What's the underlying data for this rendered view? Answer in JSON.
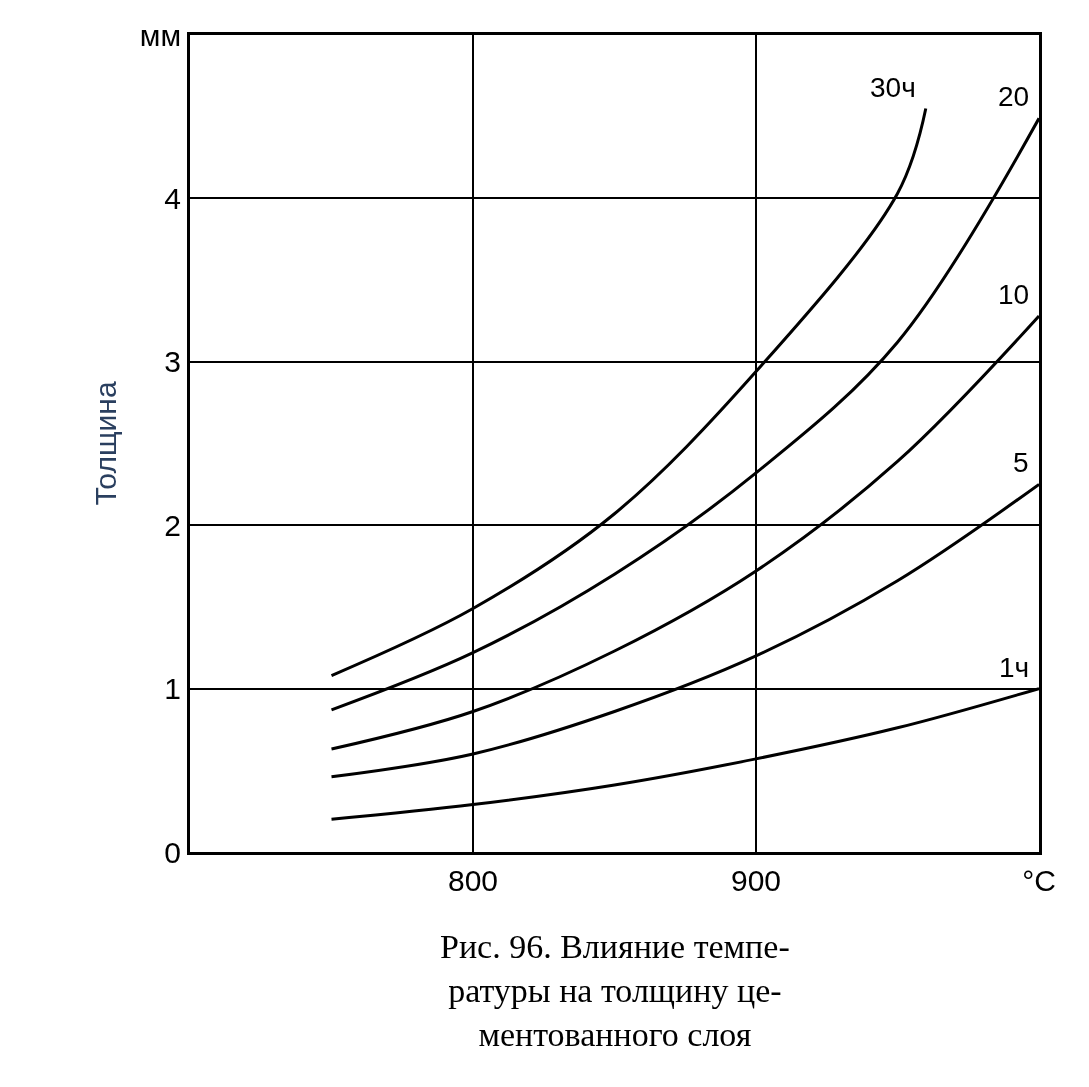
{
  "chart_data": {
    "type": "line",
    "xlabel": null,
    "ylabel": "Толщина",
    "xlim": [
      700,
      1000
    ],
    "ylim": [
      0,
      5
    ],
    "xticks": [
      800,
      900,
      {
        "value": 1000,
        "label": "°C"
      }
    ],
    "yticks": [
      0,
      1,
      2,
      3,
      4,
      {
        "value": 5,
        "label": "мм"
      }
    ],
    "grid": true,
    "legend": false,
    "marker": "none",
    "line_style": "solid",
    "series": [
      {
        "name": "30ч",
        "color": "#000000",
        "x": [
          750,
          800,
          850,
          900,
          950,
          960
        ],
        "values": [
          1.08,
          1.49,
          2.07,
          2.94,
          4.03,
          4.55
        ]
      },
      {
        "name": "20",
        "color": "#000000",
        "x": [
          750,
          800,
          850,
          900,
          950,
          1000
        ],
        "values": [
          0.87,
          1.22,
          1.7,
          2.32,
          3.12,
          4.49
        ]
      },
      {
        "name": "10",
        "color": "#000000",
        "x": [
          750,
          800,
          850,
          900,
          950,
          1000
        ],
        "values": [
          0.63,
          0.86,
          1.23,
          1.72,
          2.39,
          3.28
        ]
      },
      {
        "name": "5",
        "color": "#000000",
        "x": [
          750,
          800,
          850,
          900,
          950,
          1000
        ],
        "values": [
          0.46,
          0.6,
          0.86,
          1.2,
          1.66,
          2.25
        ]
      },
      {
        "name": "1ч",
        "color": "#000000",
        "x": [
          750,
          800,
          850,
          900,
          950,
          1000
        ],
        "values": [
          0.2,
          0.29,
          0.41,
          0.57,
          0.76,
          1.0
        ]
      }
    ],
    "annotations": [
      "Рис. 96. Влияние темпе-\nратуры на толщину це-\nментованного слоя"
    ]
  }
}
